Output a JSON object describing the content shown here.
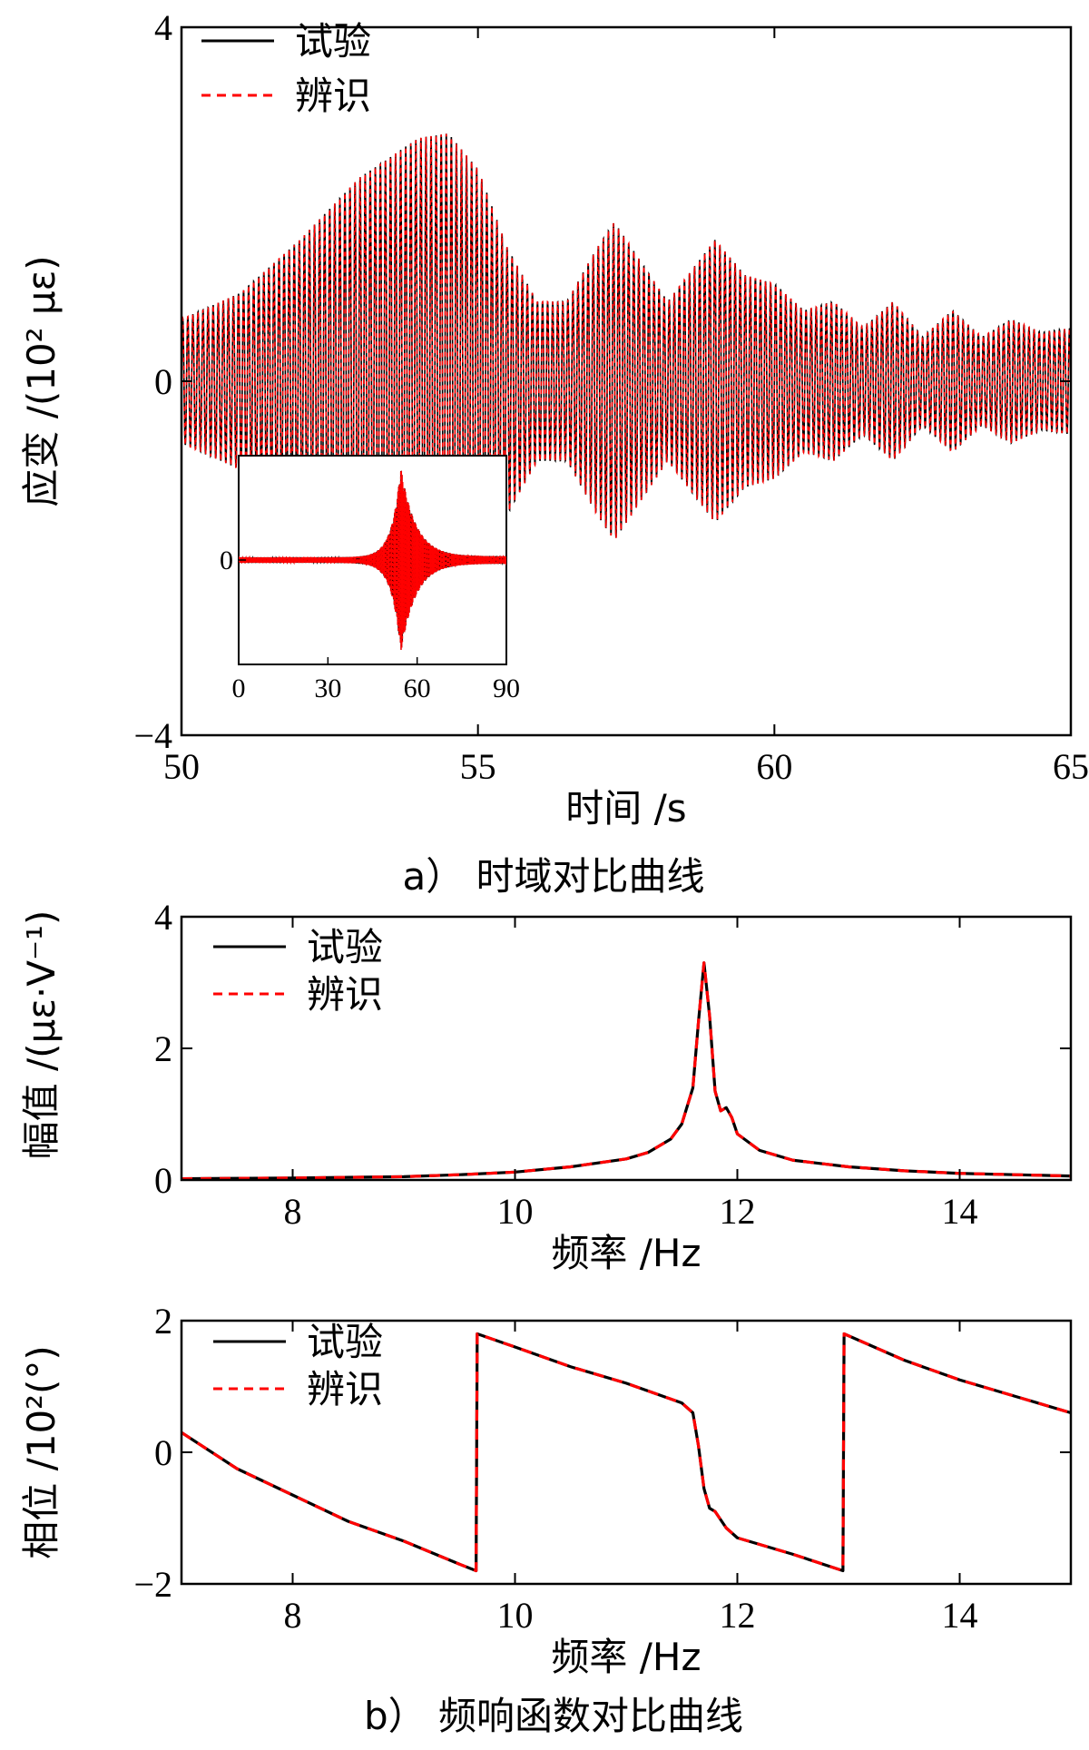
{
  "chart_data": [
    {
      "id": "time_domain",
      "type": "line",
      "xlabel": "时间 /s",
      "ylabel": "应变 /(10² με)",
      "xlim": [
        50,
        65
      ],
      "ylim": [
        -4,
        4
      ],
      "xticks": [
        50,
        55,
        60,
        65
      ],
      "yticks": [
        -4,
        0,
        4
      ],
      "ytick_labels": [
        "−4",
        "0",
        "4"
      ],
      "legend": {
        "position": "top-left"
      },
      "series": [
        {
          "name": "试验",
          "color": "#000000",
          "dash": "solid"
        },
        {
          "name": "辨识",
          "color": "#ff0000",
          "dash": "dashed"
        }
      ],
      "envelope": {
        "x": [
          50,
          51,
          52,
          53,
          54,
          54.5,
          55,
          55.5,
          56,
          56.5,
          57,
          57.3,
          57.8,
          58.2,
          59,
          59.5,
          60,
          60.5,
          61,
          61.5,
          62,
          62.5,
          63,
          63.5,
          64,
          64.5,
          65
        ],
        "y": [
          0.7,
          1.0,
          1.6,
          2.3,
          2.75,
          2.8,
          2.4,
          1.5,
          0.9,
          0.9,
          1.5,
          1.8,
          1.3,
          0.9,
          1.6,
          1.2,
          1.1,
          0.8,
          0.9,
          0.6,
          0.9,
          0.5,
          0.8,
          0.5,
          0.7,
          0.55,
          0.6
        ]
      },
      "inset": {
        "xlim": [
          0,
          90
        ],
        "xticks": [
          0,
          30,
          60,
          90
        ],
        "yticks": [
          0
        ],
        "peak_x": 54.5,
        "color": "#ff0000"
      }
    },
    {
      "id": "magnitude",
      "type": "line",
      "xlabel": "频率 /Hz",
      "ylabel": "幅值 /(με·V⁻¹)",
      "xlim": [
        7,
        15
      ],
      "ylim": [
        0,
        4
      ],
      "xticks": [
        8,
        10,
        12,
        14
      ],
      "yticks": [
        0,
        2,
        4
      ],
      "legend": {
        "position": "top-left"
      },
      "series": [
        {
          "name": "试验",
          "color": "#000000",
          "dash": "solid"
        },
        {
          "name": "辨识",
          "color": "#ff0000",
          "dash": "dashed"
        }
      ],
      "x": [
        7,
        8,
        9,
        9.5,
        10,
        10.5,
        11,
        11.2,
        11.4,
        11.5,
        11.6,
        11.65,
        11.7,
        11.75,
        11.8,
        11.85,
        11.9,
        11.95,
        12,
        12.2,
        12.5,
        13,
        13.5,
        14,
        14.5,
        15
      ],
      "y": [
        0.02,
        0.03,
        0.05,
        0.08,
        0.12,
        0.2,
        0.32,
        0.42,
        0.62,
        0.85,
        1.4,
        2.4,
        3.3,
        2.5,
        1.35,
        1.05,
        1.1,
        0.95,
        0.7,
        0.45,
        0.3,
        0.2,
        0.14,
        0.1,
        0.08,
        0.06
      ]
    },
    {
      "id": "phase",
      "type": "line",
      "xlabel": "频率 /Hz",
      "ylabel": "相位 /10²(°)",
      "xlim": [
        7,
        15
      ],
      "ylim": [
        -2,
        2
      ],
      "xticks": [
        8,
        10,
        12,
        14
      ],
      "yticks": [
        -2,
        0,
        2
      ],
      "ytick_labels": [
        "−2",
        "0",
        "2"
      ],
      "legend": {
        "position": "top-left"
      },
      "series": [
        {
          "name": "试验",
          "color": "#000000",
          "dash": "solid"
        },
        {
          "name": "辨识",
          "color": "#ff0000",
          "dash": "dashed"
        }
      ],
      "x": [
        7,
        7.5,
        8,
        8.5,
        9,
        9.5,
        9.65,
        9.66,
        10,
        10.5,
        11,
        11.5,
        11.6,
        11.65,
        11.7,
        11.75,
        11.8,
        11.9,
        12,
        12.5,
        12.95,
        12.96,
        13.5,
        14,
        14.5,
        15
      ],
      "y": [
        0.3,
        -0.25,
        -0.65,
        -1.05,
        -1.35,
        -1.7,
        -1.8,
        1.8,
        1.6,
        1.3,
        1.05,
        0.75,
        0.6,
        0.1,
        -0.55,
        -0.85,
        -0.9,
        -1.15,
        -1.3,
        -1.55,
        -1.8,
        1.8,
        1.4,
        1.1,
        0.85,
        0.6
      ]
    }
  ],
  "captions": {
    "a": "a） 时域对比曲线",
    "b": "b） 频响函数对比曲线"
  }
}
